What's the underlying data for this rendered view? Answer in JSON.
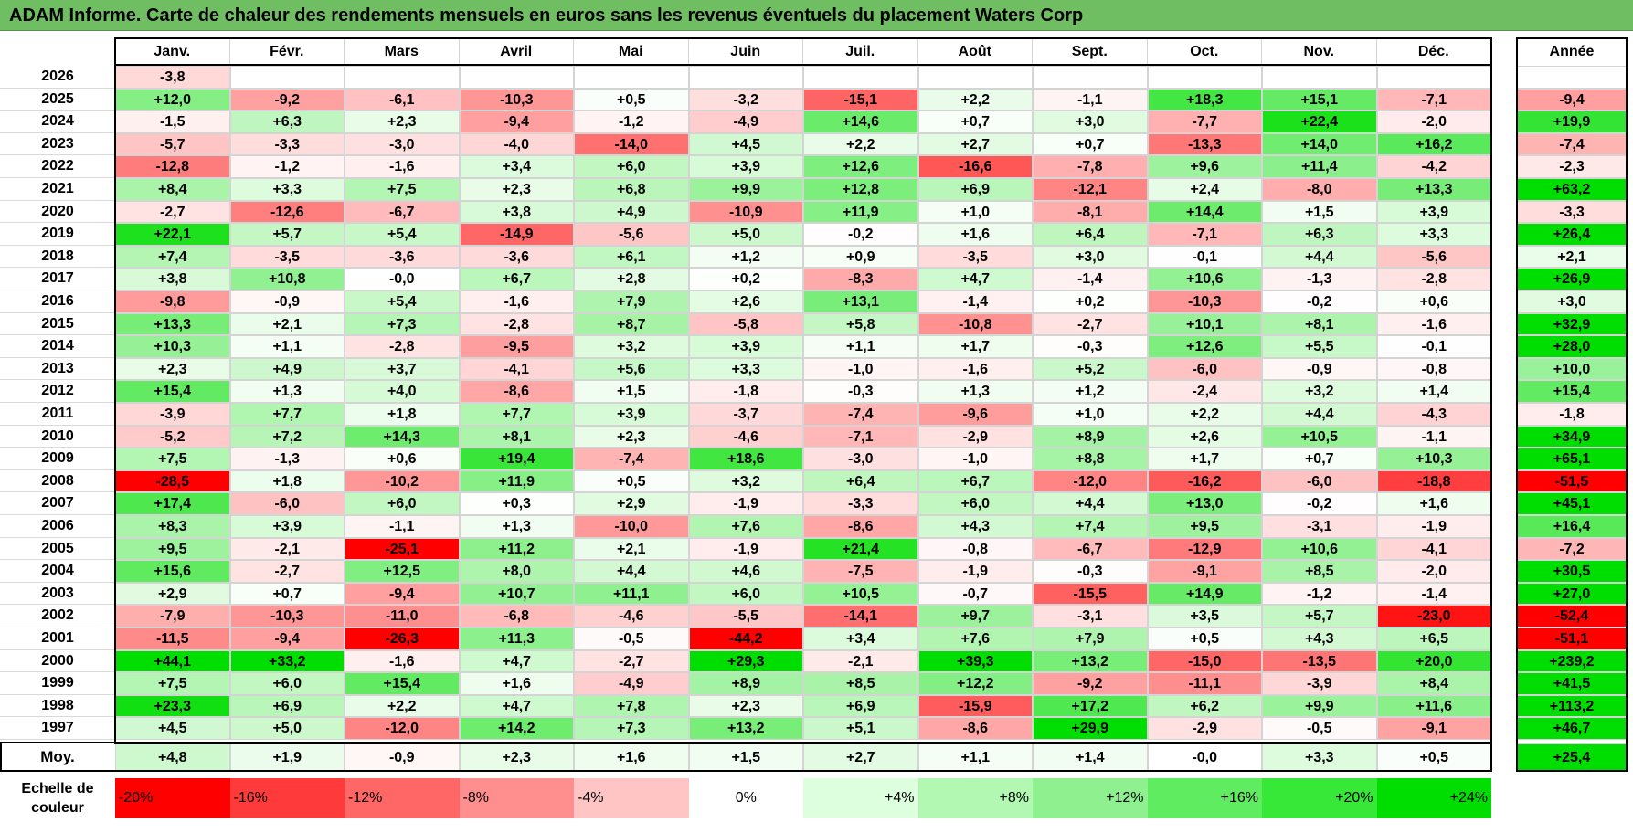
{
  "title": "ADAM Informe. Carte de chaleur des rendements mensuels en euros sans les revenus éventuels du placement Waters Corp",
  "chart_data": {
    "type": "heatmap",
    "title": "ADAM Informe. Carte de chaleur des rendements mensuels en euros sans les revenus éventuels du placement Waters Corp",
    "months": [
      "Janv.",
      "Févr.",
      "Mars",
      "Avril",
      "Mai",
      "Juin",
      "Juil.",
      "Août",
      "Sept.",
      "Oct.",
      "Nov.",
      "Déc."
    ],
    "annual_header": "Année",
    "rows": [
      {
        "year": "2026",
        "values": [
          "-3,8",
          "",
          "",
          "",
          "",
          "",
          "",
          "",
          "",
          "",
          "",
          ""
        ],
        "annual": ""
      },
      {
        "year": "2025",
        "values": [
          "+12,0",
          "-9,2",
          "-6,1",
          "-10,3",
          "+0,5",
          "-3,2",
          "-15,1",
          "+2,2",
          "-1,1",
          "+18,3",
          "+15,1",
          "-7,1"
        ],
        "annual": "-9,4"
      },
      {
        "year": "2024",
        "values": [
          "-1,5",
          "+6,3",
          "+2,3",
          "-9,4",
          "-1,2",
          "-4,9",
          "+14,6",
          "+0,7",
          "+3,0",
          "-7,7",
          "+22,4",
          "-2,0"
        ],
        "annual": "+19,9"
      },
      {
        "year": "2023",
        "values": [
          "-5,7",
          "-3,3",
          "-3,0",
          "-4,0",
          "-14,0",
          "+4,5",
          "+2,2",
          "+2,7",
          "+0,7",
          "-13,3",
          "+14,0",
          "+16,2"
        ],
        "annual": "-7,4"
      },
      {
        "year": "2022",
        "values": [
          "-12,8",
          "-1,2",
          "-1,6",
          "+3,4",
          "+6,0",
          "+3,9",
          "+12,6",
          "-16,6",
          "-7,8",
          "+9,6",
          "+11,4",
          "-4,2"
        ],
        "annual": "-2,3"
      },
      {
        "year": "2021",
        "values": [
          "+8,4",
          "+3,3",
          "+7,5",
          "+2,3",
          "+6,8",
          "+9,9",
          "+12,8",
          "+6,9",
          "-12,1",
          "+2,4",
          "-8,0",
          "+13,3"
        ],
        "annual": "+63,2"
      },
      {
        "year": "2020",
        "values": [
          "-2,7",
          "-12,6",
          "-6,7",
          "+3,8",
          "+4,9",
          "-10,9",
          "+11,9",
          "+1,0",
          "-8,1",
          "+14,4",
          "+1,5",
          "+3,9"
        ],
        "annual": "-3,3"
      },
      {
        "year": "2019",
        "values": [
          "+22,1",
          "+5,7",
          "+5,4",
          "-14,9",
          "-5,6",
          "+5,0",
          "-0,2",
          "+1,6",
          "+6,4",
          "-7,1",
          "+6,3",
          "+3,3"
        ],
        "annual": "+26,4"
      },
      {
        "year": "2018",
        "values": [
          "+7,4",
          "-3,5",
          "-3,6",
          "-3,6",
          "+6,1",
          "+1,2",
          "+0,9",
          "-3,5",
          "+3,0",
          "-0,1",
          "+4,4",
          "-5,6"
        ],
        "annual": "+2,1"
      },
      {
        "year": "2017",
        "values": [
          "+3,8",
          "+10,8",
          "-0,0",
          "+6,7",
          "+2,8",
          "+0,2",
          "-8,3",
          "+4,7",
          "-1,4",
          "+10,6",
          "-1,3",
          "-2,8"
        ],
        "annual": "+26,9"
      },
      {
        "year": "2016",
        "values": [
          "-9,8",
          "-0,9",
          "+5,4",
          "-1,6",
          "+7,9",
          "+2,6",
          "+13,1",
          "-1,4",
          "+0,2",
          "-10,3",
          "-0,2",
          "+0,6"
        ],
        "annual": "+3,0"
      },
      {
        "year": "2015",
        "values": [
          "+13,3",
          "+2,1",
          "+7,3",
          "-2,8",
          "+8,7",
          "-5,8",
          "+5,8",
          "-10,8",
          "-2,7",
          "+10,1",
          "+8,1",
          "-1,6"
        ],
        "annual": "+32,9"
      },
      {
        "year": "2014",
        "values": [
          "+10,3",
          "+1,1",
          "-2,8",
          "-9,5",
          "+3,2",
          "+3,9",
          "+1,1",
          "+1,7",
          "-0,3",
          "+12,6",
          "+5,5",
          "-0,1"
        ],
        "annual": "+28,0"
      },
      {
        "year": "2013",
        "values": [
          "+2,3",
          "+4,9",
          "+3,7",
          "-4,1",
          "+5,6",
          "+3,3",
          "-1,0",
          "-1,6",
          "+5,2",
          "-6,0",
          "-0,9",
          "-0,8"
        ],
        "annual": "+10,0"
      },
      {
        "year": "2012",
        "values": [
          "+15,4",
          "+1,3",
          "+4,0",
          "-8,6",
          "+1,5",
          "-1,8",
          "-0,3",
          "+1,3",
          "+1,2",
          "-2,4",
          "+3,2",
          "+1,4"
        ],
        "annual": "+15,4"
      },
      {
        "year": "2011",
        "values": [
          "-3,9",
          "+7,7",
          "+1,8",
          "+7,7",
          "+3,9",
          "-3,7",
          "-7,4",
          "-9,6",
          "+1,0",
          "+2,2",
          "+4,4",
          "-4,3"
        ],
        "annual": "-1,8"
      },
      {
        "year": "2010",
        "values": [
          "-5,2",
          "+7,2",
          "+14,3",
          "+8,1",
          "+2,3",
          "-4,6",
          "-7,1",
          "-2,9",
          "+8,9",
          "+2,6",
          "+10,5",
          "-1,1"
        ],
        "annual": "+34,9"
      },
      {
        "year": "2009",
        "values": [
          "+7,5",
          "-1,3",
          "+0,6",
          "+19,4",
          "-7,4",
          "+18,6",
          "-3,0",
          "-1,0",
          "+8,8",
          "+1,7",
          "+0,7",
          "+10,3"
        ],
        "annual": "+65,1"
      },
      {
        "year": "2008",
        "values": [
          "-28,5",
          "+1,8",
          "-10,2",
          "+11,9",
          "+0,5",
          "+3,2",
          "+6,4",
          "+6,7",
          "-12,0",
          "-16,2",
          "-6,0",
          "-18,8"
        ],
        "annual": "-51,5"
      },
      {
        "year": "2007",
        "values": [
          "+17,4",
          "-6,0",
          "+6,0",
          "+0,3",
          "+2,9",
          "-1,9",
          "-3,3",
          "+6,0",
          "+4,4",
          "+13,0",
          "-0,2",
          "+1,6"
        ],
        "annual": "+45,1"
      },
      {
        "year": "2006",
        "values": [
          "+8,3",
          "+3,9",
          "-1,1",
          "+1,3",
          "-10,0",
          "+7,6",
          "-8,6",
          "+4,3",
          "+7,4",
          "+9,5",
          "-3,1",
          "-1,9"
        ],
        "annual": "+16,4"
      },
      {
        "year": "2005",
        "values": [
          "+9,5",
          "-2,1",
          "-25,1",
          "+11,2",
          "+2,1",
          "-1,9",
          "+21,4",
          "-0,8",
          "-6,7",
          "-12,9",
          "+10,6",
          "-4,1"
        ],
        "annual": "-7,2"
      },
      {
        "year": "2004",
        "values": [
          "+15,6",
          "-2,7",
          "+12,5",
          "+8,0",
          "+4,4",
          "+4,6",
          "-7,5",
          "-1,9",
          "-0,3",
          "-9,1",
          "+8,5",
          "-2,0"
        ],
        "annual": "+30,5"
      },
      {
        "year": "2003",
        "values": [
          "+2,9",
          "+0,7",
          "-9,4",
          "+10,7",
          "+11,1",
          "+6,0",
          "+10,5",
          "-0,7",
          "-15,5",
          "+14,9",
          "-1,2",
          "-1,4"
        ],
        "annual": "+27,0"
      },
      {
        "year": "2002",
        "values": [
          "-7,9",
          "-10,3",
          "-11,0",
          "-6,8",
          "-4,6",
          "-5,5",
          "-14,1",
          "+9,7",
          "-3,1",
          "+3,5",
          "+5,7",
          "-23,0"
        ],
        "annual": "-52,4"
      },
      {
        "year": "2001",
        "values": [
          "-11,5",
          "-9,4",
          "-26,3",
          "+11,3",
          "-0,5",
          "-44,2",
          "+3,4",
          "+7,6",
          "+7,9",
          "+0,5",
          "+4,3",
          "+6,5"
        ],
        "annual": "-51,1"
      },
      {
        "year": "2000",
        "values": [
          "+44,1",
          "+33,2",
          "-1,6",
          "+4,7",
          "-2,7",
          "+29,3",
          "-2,1",
          "+39,3",
          "+13,2",
          "-15,0",
          "-13,5",
          "+20,0"
        ],
        "annual": "+239,2"
      },
      {
        "year": "1999",
        "values": [
          "+7,5",
          "+6,0",
          "+15,4",
          "+1,6",
          "-4,9",
          "+8,9",
          "+8,5",
          "+12,2",
          "-9,2",
          "-11,1",
          "-3,9",
          "+8,4"
        ],
        "annual": "+41,5"
      },
      {
        "year": "1998",
        "values": [
          "+23,3",
          "+6,9",
          "+2,2",
          "+4,7",
          "+7,8",
          "+2,3",
          "+6,9",
          "-15,9",
          "+17,2",
          "+6,2",
          "+9,9",
          "+11,6"
        ],
        "annual": "+113,2"
      },
      {
        "year": "1997",
        "values": [
          "+4,5",
          "+5,0",
          "-12,0",
          "+14,2",
          "+7,3",
          "+13,2",
          "+5,1",
          "-8,6",
          "+29,9",
          "-2,9",
          "-0,5",
          "-9,1"
        ],
        "annual": "+46,7"
      }
    ],
    "average": {
      "label": "Moy.",
      "values": [
        "+4,8",
        "+1,9",
        "-0,9",
        "+2,3",
        "+1,6",
        "+1,5",
        "+2,7",
        "+1,1",
        "+1,4",
        "-0,0",
        "+3,3",
        "+0,5"
      ],
      "annual": "+25,4"
    },
    "color_scale": {
      "label": "Echelle de couleur",
      "steps": [
        {
          "label": "-20%",
          "value": -20,
          "color": "#ff0000"
        },
        {
          "label": "-16%",
          "value": -16,
          "color": "#ff3a3a"
        },
        {
          "label": "-12%",
          "value": -12,
          "color": "#ff6666"
        },
        {
          "label": "-8%",
          "value": -8,
          "color": "#ff8f8f"
        },
        {
          "label": "-4%",
          "value": -4,
          "color": "#ffc4c4"
        },
        {
          "label": "0%",
          "value": 0,
          "color": "#ffffff"
        },
        {
          "label": "+4%",
          "value": 4,
          "color": "#ddffdd"
        },
        {
          "label": "+8%",
          "value": 8,
          "color": "#b2f8b2"
        },
        {
          "label": "+12%",
          "value": 12,
          "color": "#8ff08f"
        },
        {
          "label": "+16%",
          "value": 16,
          "color": "#60ec60"
        },
        {
          "label": "+20%",
          "value": 20,
          "color": "#38e838"
        },
        {
          "label": "+24%",
          "value": 24,
          "color": "#00dd00"
        }
      ]
    }
  }
}
